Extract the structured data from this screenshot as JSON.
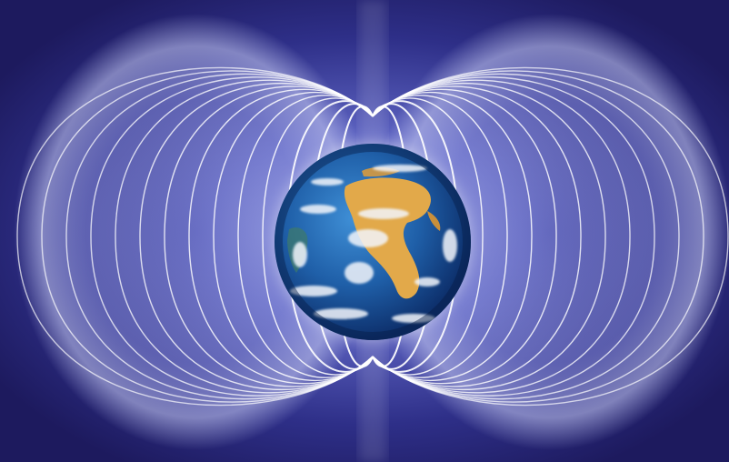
{
  "image": {
    "subject": "earth-magnetic-field",
    "colors": {
      "background_dark": "#1d1a5e",
      "background_mid": "#3a3f9e",
      "glow": "#c9cdf4",
      "field_line": "#ffffff",
      "ocean": "#1f5fa8",
      "ocean_deep": "#0d2f6b",
      "land": "#e2a94a",
      "cloud": "#f2f5fb"
    },
    "field_line_count_per_side": 14
  }
}
